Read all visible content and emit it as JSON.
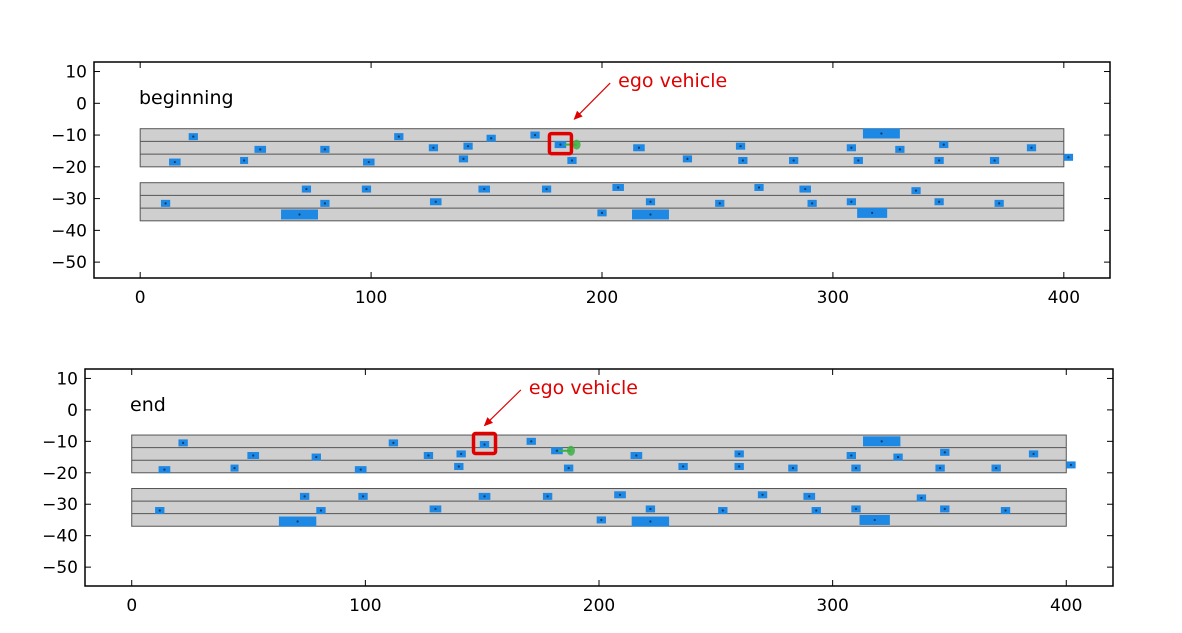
{
  "colors": {
    "road": "#cfcfcf",
    "lane_line": "#555555",
    "vehicle": "#1e88e5",
    "ego_box": "#e00000",
    "annotation": "#e00000",
    "goal": "#3cb043"
  },
  "chart_data": [
    {
      "type": "scatter",
      "label": "beginning",
      "xlim": [
        -20,
        420
      ],
      "ylim": [
        -55,
        13
      ],
      "xticks": [
        "0",
        "100",
        "200",
        "300",
        "400"
      ],
      "xtick_values": [
        0,
        100,
        200,
        300,
        400
      ],
      "yticks": [
        "10",
        "0",
        "−10",
        "−20",
        "−30",
        "−40",
        "−50"
      ],
      "ytick_values": [
        10,
        0,
        -10,
        -20,
        -30,
        -40,
        -50
      ],
      "road_bands": [
        [
          -20,
          -8
        ],
        [
          -37,
          -25
        ]
      ],
      "lane_lines": [
        -12,
        -16,
        -29,
        -33
      ],
      "road_x": [
        0,
        400
      ],
      "annotation": {
        "text": "ego vehicle",
        "text_at": [
          207,
          7
        ],
        "arrow_tip": [
          188,
          -5
        ]
      },
      "ego": {
        "x": 182,
        "y": -13
      },
      "goal": {
        "x": 189,
        "y": -13
      },
      "vehicles": [
        {
          "x": 23,
          "y": -10.5,
          "len": 4
        },
        {
          "x": 15,
          "y": -18.5,
          "len": 5
        },
        {
          "x": 45,
          "y": -18,
          "len": 3
        },
        {
          "x": 52,
          "y": -14.5,
          "len": 5
        },
        {
          "x": 80,
          "y": -14.5,
          "len": 4
        },
        {
          "x": 99,
          "y": -18.5,
          "len": 5
        },
        {
          "x": 112,
          "y": -10.5,
          "len": 4
        },
        {
          "x": 127,
          "y": -14,
          "len": 4
        },
        {
          "x": 140,
          "y": -17.5,
          "len": 4
        },
        {
          "x": 142,
          "y": -13.5,
          "len": 4
        },
        {
          "x": 152,
          "y": -11,
          "len": 4
        },
        {
          "x": 171,
          "y": -10,
          "len": 4
        },
        {
          "x": 182,
          "y": -13,
          "len": 5
        },
        {
          "x": 187,
          "y": -18,
          "len": 4
        },
        {
          "x": 216,
          "y": -14,
          "len": 5
        },
        {
          "x": 237,
          "y": -17.5,
          "len": 4
        },
        {
          "x": 260,
          "y": -13.5,
          "len": 4
        },
        {
          "x": 261,
          "y": -18,
          "len": 4
        },
        {
          "x": 283,
          "y": -18,
          "len": 4
        },
        {
          "x": 308,
          "y": -14,
          "len": 4
        },
        {
          "x": 311,
          "y": -18,
          "len": 4
        },
        {
          "x": 321,
          "y": -9.5,
          "len": 16
        },
        {
          "x": 329,
          "y": -14.5,
          "len": 4
        },
        {
          "x": 346,
          "y": -18,
          "len": 4
        },
        {
          "x": 348,
          "y": -13,
          "len": 4
        },
        {
          "x": 370,
          "y": -18,
          "len": 4
        },
        {
          "x": 386,
          "y": -14,
          "len": 4
        },
        {
          "x": 402,
          "y": -17,
          "len": 4
        },
        {
          "x": 11,
          "y": -31.5,
          "len": 4
        },
        {
          "x": 72,
          "y": -27,
          "len": 4
        },
        {
          "x": 69,
          "y": -35,
          "len": 16
        },
        {
          "x": 80,
          "y": -31.5,
          "len": 4
        },
        {
          "x": 98,
          "y": -27,
          "len": 4
        },
        {
          "x": 128,
          "y": -31,
          "len": 5
        },
        {
          "x": 149,
          "y": -27,
          "len": 5
        },
        {
          "x": 176,
          "y": -27,
          "len": 4
        },
        {
          "x": 200,
          "y": -34.5,
          "len": 4
        },
        {
          "x": 207,
          "y": -26.5,
          "len": 5
        },
        {
          "x": 221,
          "y": -31,
          "len": 4
        },
        {
          "x": 221,
          "y": -35,
          "len": 16
        },
        {
          "x": 251,
          "y": -31.5,
          "len": 4
        },
        {
          "x": 268,
          "y": -26.5,
          "len": 4
        },
        {
          "x": 288,
          "y": -27,
          "len": 5
        },
        {
          "x": 291,
          "y": -31.5,
          "len": 4
        },
        {
          "x": 308,
          "y": -31,
          "len": 4
        },
        {
          "x": 317,
          "y": -34.5,
          "len": 13
        },
        {
          "x": 336,
          "y": -27.5,
          "len": 4
        },
        {
          "x": 346,
          "y": -31,
          "len": 4
        },
        {
          "x": 372,
          "y": -31.5,
          "len": 4
        }
      ]
    },
    {
      "type": "scatter",
      "label": "end",
      "xlim": [
        -20,
        420
      ],
      "ylim": [
        -56,
        13
      ],
      "xticks": [
        "0",
        "100",
        "200",
        "300",
        "400"
      ],
      "xtick_values": [
        0,
        100,
        200,
        300,
        400
      ],
      "yticks": [
        "10",
        "0",
        "−10",
        "−20",
        "−30",
        "−40",
        "−50"
      ],
      "ytick_values": [
        10,
        0,
        -10,
        -20,
        -30,
        -40,
        -50
      ],
      "road_bands": [
        [
          -20,
          -8
        ],
        [
          -37,
          -25
        ]
      ],
      "lane_lines": [
        -12,
        -16,
        -29,
        -33
      ],
      "road_x": [
        0,
        400
      ],
      "annotation": {
        "text": "ego vehicle",
        "text_at": [
          170,
          7
        ],
        "arrow_tip": [
          151,
          -5
        ]
      },
      "ego": {
        "x": 151,
        "y": -11
      },
      "goal": {
        "x": 188,
        "y": -13
      },
      "vehicles": [
        {
          "x": 22,
          "y": -10.5,
          "len": 4
        },
        {
          "x": 14,
          "y": -19,
          "len": 5
        },
        {
          "x": 44,
          "y": -18.5,
          "len": 3
        },
        {
          "x": 52,
          "y": -14.5,
          "len": 5
        },
        {
          "x": 79,
          "y": -15,
          "len": 4
        },
        {
          "x": 98,
          "y": -19,
          "len": 5
        },
        {
          "x": 112,
          "y": -10.5,
          "len": 4
        },
        {
          "x": 127,
          "y": -14.5,
          "len": 4
        },
        {
          "x": 140,
          "y": -18,
          "len": 4
        },
        {
          "x": 141,
          "y": -14,
          "len": 4
        },
        {
          "x": 151,
          "y": -11,
          "len": 4
        },
        {
          "x": 171,
          "y": -10,
          "len": 4
        },
        {
          "x": 182,
          "y": -13,
          "len": 5
        },
        {
          "x": 187,
          "y": -18.5,
          "len": 4
        },
        {
          "x": 216,
          "y": -14.5,
          "len": 5
        },
        {
          "x": 236,
          "y": -18,
          "len": 4
        },
        {
          "x": 260,
          "y": -14,
          "len": 4
        },
        {
          "x": 260,
          "y": -18,
          "len": 4
        },
        {
          "x": 283,
          "y": -18.5,
          "len": 4
        },
        {
          "x": 308,
          "y": -14.5,
          "len": 4
        },
        {
          "x": 310,
          "y": -18.5,
          "len": 4
        },
        {
          "x": 321,
          "y": -10,
          "len": 16
        },
        {
          "x": 328,
          "y": -15,
          "len": 4
        },
        {
          "x": 346,
          "y": -18.5,
          "len": 4
        },
        {
          "x": 348,
          "y": -13.5,
          "len": 4
        },
        {
          "x": 370,
          "y": -18.5,
          "len": 4
        },
        {
          "x": 386,
          "y": -14,
          "len": 4
        },
        {
          "x": 402,
          "y": -17.5,
          "len": 4
        },
        {
          "x": 12,
          "y": -32,
          "len": 4
        },
        {
          "x": 74,
          "y": -27.5,
          "len": 4
        },
        {
          "x": 71,
          "y": -35.5,
          "len": 16
        },
        {
          "x": 81,
          "y": -32,
          "len": 4
        },
        {
          "x": 99,
          "y": -27.5,
          "len": 4
        },
        {
          "x": 130,
          "y": -31.5,
          "len": 5
        },
        {
          "x": 151,
          "y": -27.5,
          "len": 5
        },
        {
          "x": 178,
          "y": -27.5,
          "len": 4
        },
        {
          "x": 201,
          "y": -35,
          "len": 4
        },
        {
          "x": 209,
          "y": -27,
          "len": 5
        },
        {
          "x": 222,
          "y": -31.5,
          "len": 4
        },
        {
          "x": 222,
          "y": -35.5,
          "len": 16
        },
        {
          "x": 253,
          "y": -32,
          "len": 4
        },
        {
          "x": 270,
          "y": -27,
          "len": 4
        },
        {
          "x": 290,
          "y": -27.5,
          "len": 5
        },
        {
          "x": 293,
          "y": -32,
          "len": 4
        },
        {
          "x": 310,
          "y": -31.5,
          "len": 4
        },
        {
          "x": 318,
          "y": -35,
          "len": 13
        },
        {
          "x": 338,
          "y": -28,
          "len": 4
        },
        {
          "x": 348,
          "y": -31.5,
          "len": 4
        },
        {
          "x": 374,
          "y": -32,
          "len": 4
        }
      ]
    }
  ]
}
